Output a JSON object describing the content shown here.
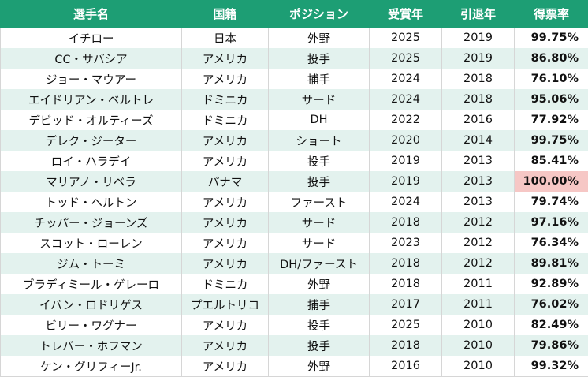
{
  "table": {
    "headers": [
      "選手名",
      "国籍",
      "ポジション",
      "受賞年",
      "引退年",
      "得票率"
    ],
    "rows": [
      [
        "イチロー",
        "日本",
        "外野",
        "2025",
        "2019",
        "99.75%"
      ],
      [
        "CC・サバシア",
        "アメリカ",
        "投手",
        "2025",
        "2019",
        "86.80%"
      ],
      [
        "ジョー・マウアー",
        "アメリカ",
        "捕手",
        "2024",
        "2018",
        "76.10%"
      ],
      [
        "エイドリアン・ベルトレ",
        "ドミニカ",
        "サード",
        "2024",
        "2018",
        "95.06%"
      ],
      [
        "デビッド・オルティーズ",
        "ドミニカ",
        "DH",
        "2022",
        "2016",
        "77.92%"
      ],
      [
        "デレク・ジーター",
        "アメリカ",
        "ショート",
        "2020",
        "2014",
        "99.75%"
      ],
      [
        "ロイ・ハラデイ",
        "アメリカ",
        "投手",
        "2019",
        "2013",
        "85.41%"
      ],
      [
        "マリアノ・リベラ",
        "パナマ",
        "投手",
        "2019",
        "2013",
        "100.00%"
      ],
      [
        "トッド・ヘルトン",
        "アメリカ",
        "ファースト",
        "2024",
        "2013",
        "79.74%"
      ],
      [
        "チッパー・ジョーンズ",
        "アメリカ",
        "サード",
        "2018",
        "2012",
        "97.16%"
      ],
      [
        "スコット・ローレン",
        "アメリカ",
        "サード",
        "2023",
        "2012",
        "76.34%"
      ],
      [
        "ジム・トーミ",
        "アメリカ",
        "DH/ファースト",
        "2018",
        "2012",
        "89.81%"
      ],
      [
        "ブラディミール・ゲレーロ",
        "ドミニカ",
        "外野",
        "2018",
        "2011",
        "92.89%"
      ],
      [
        "イバン・ロドリゲス",
        "プエルトリコ",
        "捕手",
        "2017",
        "2011",
        "76.02%"
      ],
      [
        "ビリー・ワグナー",
        "アメリカ",
        "投手",
        "2025",
        "2010",
        "82.49%"
      ],
      [
        "トレバー・ホフマン",
        "アメリカ",
        "投手",
        "2018",
        "2010",
        "79.86%"
      ],
      [
        "ケン・グリフィーJr.",
        "アメリカ",
        "外野",
        "2016",
        "2010",
        "99.32%"
      ]
    ],
    "highlight_row": 7,
    "colors": {
      "header_bg": "#1d9e74",
      "header_text": "#ffffff",
      "stripe_bg": "#e3f2ee",
      "highlight_bg": "#f6c7c5"
    }
  }
}
